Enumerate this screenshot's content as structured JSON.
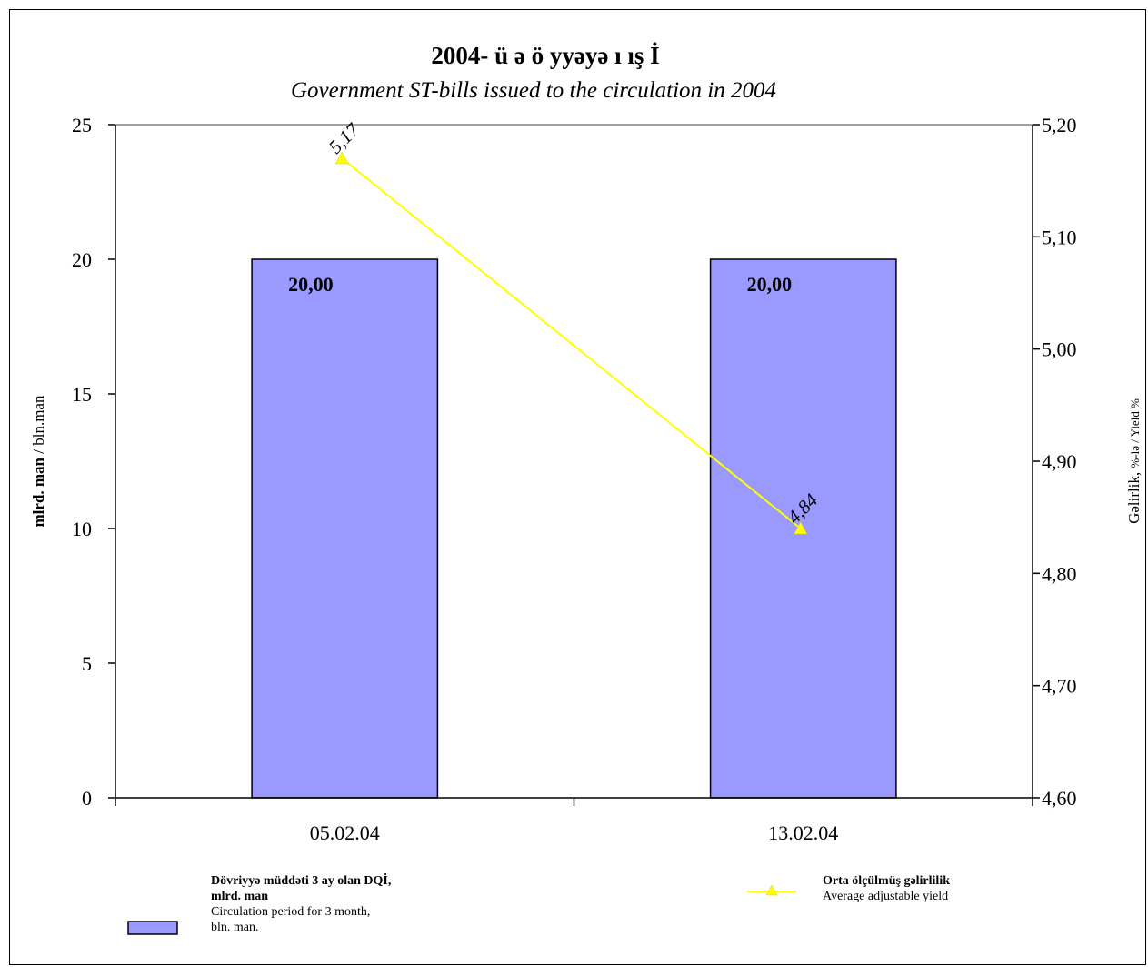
{
  "chart_data": {
    "type": "bar",
    "title": "2004- ü    ə  ö     yyəyə          ı   ış       İ",
    "subtitle": "Government ST-bills issued to the circulation in 2004",
    "categories": [
      "05.02.04",
      "13.02.04"
    ],
    "series": [
      {
        "axis": "left",
        "kind": "bar",
        "color": "#9999ff",
        "values": [
          20.0,
          20.0
        ],
        "data_labels": [
          "20,00",
          "20,00"
        ]
      },
      {
        "axis": "right",
        "kind": "line",
        "marker": "triangle",
        "color": "#ffff00",
        "values": [
          5.17,
          4.84
        ],
        "data_labels": [
          "5,17",
          "4,84"
        ]
      }
    ],
    "y_left": {
      "label_bold": "mlrd. man",
      "label_normal": " / bln.man",
      "ylim": [
        0,
        25
      ],
      "ticks": [
        "0",
        "5",
        "10",
        "15",
        "20",
        "25"
      ],
      "tick_values": [
        0,
        5,
        10,
        15,
        20,
        25
      ]
    },
    "y_right": {
      "label_a": "Gəlirlik, ",
      "label_b": "%-lə / Yield %",
      "ylim": [
        4.6,
        5.2
      ],
      "ticks": [
        "4,60",
        "4,70",
        "4,80",
        "4,90",
        "5,00",
        "5,10",
        "5,20"
      ],
      "tick_values": [
        4.6,
        4.7,
        4.8,
        4.9,
        5.0,
        5.1,
        5.2
      ]
    },
    "grid": false,
    "legend_position": "bottom",
    "legend": {
      "bar": {
        "title_line1": "Dövriyyə müddəti 3 ay olan DQİ,",
        "title_line2": "mlrd. man",
        "desc_line1": "Circulation period for 3 month,",
        "desc_line2": "bln. man."
      },
      "line": {
        "title": "Orta ölçülmüş gəlirlilik",
        "desc": "Average adjustable yield"
      }
    }
  }
}
